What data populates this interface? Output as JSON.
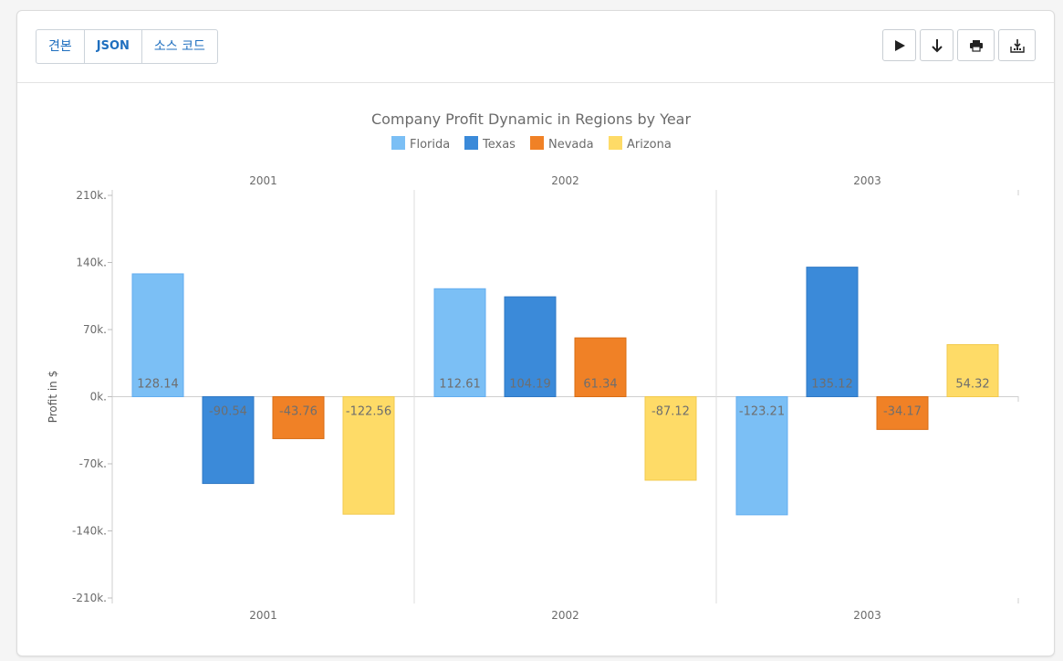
{
  "tabs": [
    {
      "label": "견본"
    },
    {
      "label": "JSON"
    },
    {
      "label": "소스 코드"
    }
  ],
  "toolbar_icons": [
    "play-icon",
    "download-arrow-icon",
    "print-icon",
    "save-image-icon"
  ],
  "chart_data": {
    "type": "bar",
    "title": "Company Profit Dynamic in Regions by Year",
    "ylabel": "Profit in $",
    "ylim": [
      -210,
      210
    ],
    "yticks": [
      210,
      140,
      70,
      0,
      -70,
      -140,
      -210
    ],
    "ytick_labels": [
      "210k.",
      "140k.",
      "70k.",
      "0k.",
      "-70k.",
      "-140k.",
      "-210k."
    ],
    "categories": [
      "2001",
      "2002",
      "2003"
    ],
    "legend_position": "top",
    "grid": false,
    "series": [
      {
        "name": "Florida",
        "color": "#7bbff5",
        "values": [
          128.14,
          112.61,
          -123.21
        ]
      },
      {
        "name": "Texas",
        "color": "#3b8ad9",
        "values": [
          -90.54,
          104.19,
          135.12
        ]
      },
      {
        "name": "Nevada",
        "color": "#f08126",
        "values": [
          -43.76,
          61.34,
          -34.17
        ]
      },
      {
        "name": "Arizona",
        "color": "#fedb67",
        "values": [
          -122.56,
          -87.12,
          54.32
        ]
      }
    ]
  }
}
